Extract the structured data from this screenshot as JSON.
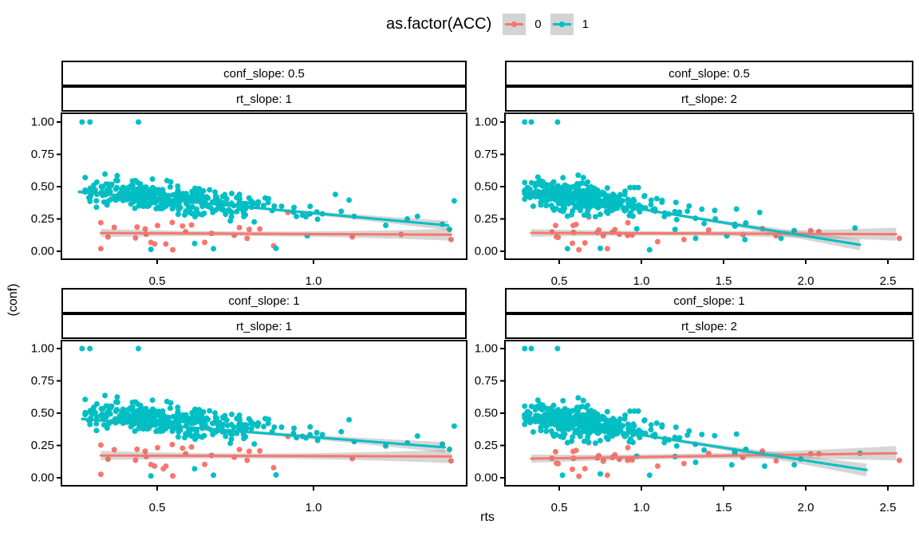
{
  "chart_data": {
    "type": "scatter",
    "title": "",
    "xlabel": "rts",
    "ylabel": "(conf)",
    "grid": "off",
    "legend": {
      "title": "as.factor(ACC)",
      "position": "top",
      "key_bg": "#D3D3D3",
      "entries": [
        {
          "label": "0",
          "color": "#F8766D"
        },
        {
          "label": "1",
          "color": "#00BFC4"
        }
      ]
    },
    "style": {
      "panel_border": "#000000",
      "strip_bg": "#FFFFFF",
      "strip_border": "#000000",
      "ci_color": "rgba(120,120,120,0.30)",
      "tick_color": "#000000",
      "text_color": "#000000"
    },
    "yticks": {
      "values": [
        0,
        0.25,
        0.5,
        0.75,
        1.0
      ],
      "labels": [
        "0.00",
        "0.25",
        "0.50",
        "0.75",
        "1.00"
      ]
    },
    "panels": [
      {
        "strip1": "conf_slope: 0.5",
        "strip2": "rt_slope: 1",
        "row": 0,
        "col": 0,
        "xlim": [
          0.194,
          1.49
        ],
        "ylim": [
          -0.065,
          1.065
        ],
        "xticks": {
          "values": [
            0.5,
            1.0
          ],
          "labels": [
            "0.5",
            "1.0"
          ]
        },
        "series": [
          {
            "name": "0",
            "color": "#F8766D",
            "n": 26,
            "seed_x": 107,
            "seed_y": 22,
            "x_mu": -0.45,
            "x_sigma": 0.38,
            "x_clip": [
              0.32,
              1.44
            ],
            "y_a": 0.155,
            "y_b": -0.013,
            "y_sd": 0.05,
            "y_clip": [
              0.02,
              0.3
            ],
            "extra": [
              [
                0.55,
                0.012
              ],
              [
                1.44,
                0.09
              ],
              [
                1.28,
                0.13
              ]
            ],
            "trend": [
              0.32,
              0.141,
              1.44,
              0.128
            ],
            "ci": {
              "xs": [
                0.32,
                0.8,
                1.44
              ],
              "hw": [
                0.032,
                0.018,
                0.046
              ]
            }
          },
          {
            "name": "1",
            "color": "#00BFC4",
            "n": 380,
            "seed_x": 7,
            "seed_y": 21,
            "x_mu": -0.62,
            "x_sigma": 0.3,
            "x_clip": [
              0.27,
              1.46
            ],
            "y_a": 0.52,
            "y_b": -0.205,
            "y_sd": 0.055,
            "y_clip": [
              0.0,
              1.0
            ],
            "extra": [
              [
                0.26,
                1.0
              ],
              [
                0.285,
                1.0
              ],
              [
                0.44,
                1.0
              ],
              [
                0.48,
                0.015
              ],
              [
                0.68,
                0.02
              ],
              [
                0.88,
                0.022
              ],
              [
                0.62,
                0.06
              ],
              [
                1.45,
                0.39
              ],
              [
                1.13,
                0.27
              ],
              [
                1.3,
                0.25
              ],
              [
                0.98,
                0.12
              ],
              [
                1.07,
                0.44
              ]
            ],
            "trend": [
              0.25,
              0.46,
              1.43,
              0.2
            ],
            "ci": {
              "xs": [
                0.25,
                0.6,
                1.43
              ],
              "hw": [
                0.016,
                0.01,
                0.036
              ]
            }
          }
        ]
      },
      {
        "strip1": "conf_slope: 0.5",
        "strip2": "rt_slope: 2",
        "row": 0,
        "col": 1,
        "xlim": [
          0.17,
          2.655
        ],
        "ylim": [
          -0.065,
          1.065
        ],
        "xticks": {
          "values": [
            0.5,
            1.0,
            1.5,
            2.0,
            2.5
          ],
          "labels": [
            "0.5",
            "1.0",
            "1.5",
            "2.0",
            "2.5"
          ]
        },
        "series": [
          {
            "name": "0",
            "color": "#F8766D",
            "n": 26,
            "seed_x": 113,
            "seed_y": 32,
            "x_mu": -0.2,
            "x_sigma": 0.5,
            "x_clip": [
              0.33,
              2.57
            ],
            "y_a": 0.148,
            "y_b": -0.004,
            "y_sd": 0.05,
            "y_clip": [
              0.02,
              0.28
            ],
            "extra": [
              [
                0.62,
                0.012
              ],
              [
                2.03,
                0.16
              ],
              [
                2.08,
                0.152
              ],
              [
                2.57,
                0.1
              ],
              [
                1.82,
                0.12
              ]
            ],
            "trend": [
              0.33,
              0.142,
              2.55,
              0.132
            ],
            "ci": {
              "xs": [
                0.33,
                1.1,
                2.55
              ],
              "hw": [
                0.03,
                0.018,
                0.05
              ]
            }
          },
          {
            "name": "1",
            "color": "#00BFC4",
            "n": 380,
            "seed_x": 13,
            "seed_y": 31,
            "x_mu": -0.5,
            "x_sigma": 0.37,
            "x_clip": [
              0.29,
              2.36
            ],
            "y_a": 0.525,
            "y_b": -0.175,
            "y_sd": 0.055,
            "y_clip": [
              0.0,
              1.0
            ],
            "extra": [
              [
                0.29,
                1.0
              ],
              [
                0.33,
                1.0
              ],
              [
                0.49,
                1.0
              ],
              [
                0.55,
                0.02
              ],
              [
                0.75,
                0.022
              ],
              [
                1.05,
                0.012
              ],
              [
                1.33,
                0.1
              ],
              [
                1.52,
                0.12
              ],
              [
                1.63,
                0.09
              ],
              [
                1.85,
                0.1
              ],
              [
                1.72,
                0.3
              ],
              [
                1.93,
                0.16
              ],
              [
                1.28,
                0.31
              ],
              [
                1.45,
                0.25
              ],
              [
                2.3,
                0.18
              ]
            ],
            "trend": [
              0.3,
              0.47,
              2.33,
              0.05
            ],
            "ci": {
              "xs": [
                0.3,
                0.7,
                2.33
              ],
              "hw": [
                0.015,
                0.01,
                0.044
              ]
            }
          }
        ]
      },
      {
        "strip1": "conf_slope: 1",
        "strip2": "rt_slope: 1",
        "row": 1,
        "col": 0,
        "xlim": [
          0.194,
          1.49
        ],
        "ylim": [
          -0.065,
          1.065
        ],
        "xticks": {
          "values": [
            0.5,
            1.0
          ],
          "labels": [
            "0.5",
            "1.0"
          ]
        },
        "series": [
          {
            "name": "0",
            "color": "#F8766D",
            "n": 26,
            "seed_x": 107,
            "seed_y": 22,
            "x_mu": -0.45,
            "x_sigma": 0.38,
            "x_clip": [
              0.32,
              1.44
            ],
            "y_a": 0.185,
            "y_b": -0.006,
            "y_sd": 0.05,
            "y_clip": [
              0.02,
              0.32
            ],
            "extra": [
              [
                0.55,
                0.015
              ],
              [
                1.44,
                0.13
              ],
              [
                0.52,
                0.07
              ]
            ],
            "trend": [
              0.32,
              0.172,
              1.44,
              0.165
            ],
            "ci": {
              "xs": [
                0.32,
                0.8,
                1.44
              ],
              "hw": [
                0.036,
                0.02,
                0.052
              ]
            }
          },
          {
            "name": "1",
            "color": "#00BFC4",
            "n": 380,
            "seed_x": 7,
            "seed_y": 21,
            "x_mu": -0.62,
            "x_sigma": 0.3,
            "x_clip": [
              0.27,
              1.46
            ],
            "y_a": 0.545,
            "y_b": -0.185,
            "y_sd": 0.058,
            "y_clip": [
              0.0,
              1.0
            ],
            "extra": [
              [
                0.26,
                1.0
              ],
              [
                0.285,
                1.0
              ],
              [
                0.44,
                1.0
              ],
              [
                0.48,
                0.015
              ],
              [
                0.68,
                0.02
              ],
              [
                0.88,
                0.022
              ],
              [
                1.45,
                0.4
              ],
              [
                1.13,
                0.28
              ],
              [
                1.3,
                0.27
              ],
              [
                0.62,
                0.07
              ]
            ],
            "trend": [
              0.26,
              0.455,
              1.42,
              0.235
            ],
            "ci": {
              "xs": [
                0.26,
                0.6,
                1.42
              ],
              "hw": [
                0.016,
                0.011,
                0.04
              ]
            }
          }
        ]
      },
      {
        "strip1": "conf_slope: 1",
        "strip2": "rt_slope: 2",
        "row": 1,
        "col": 1,
        "xlim": [
          0.17,
          2.655
        ],
        "ylim": [
          -0.065,
          1.065
        ],
        "xticks": {
          "values": [
            0.5,
            1.0,
            1.5,
            2.0,
            2.5
          ],
          "labels": [
            "0.5",
            "1.0",
            "1.5",
            "2.0",
            "2.5"
          ]
        },
        "series": [
          {
            "name": "0",
            "color": "#F8766D",
            "n": 26,
            "seed_x": 113,
            "seed_y": 32,
            "x_mu": -0.2,
            "x_sigma": 0.5,
            "x_clip": [
              0.33,
              2.57
            ],
            "y_a": 0.138,
            "y_b": 0.02,
            "y_sd": 0.05,
            "y_clip": [
              0.02,
              0.3
            ],
            "extra": [
              [
                0.62,
                0.012
              ],
              [
                2.03,
                0.185
              ],
              [
                2.08,
                0.185
              ],
              [
                2.57,
                0.135
              ],
              [
                1.82,
                0.13
              ]
            ],
            "trend": [
              0.33,
              0.148,
              2.55,
              0.19
            ],
            "ci": {
              "xs": [
                0.33,
                1.1,
                2.55
              ],
              "hw": [
                0.032,
                0.02,
                0.056
              ]
            }
          },
          {
            "name": "1",
            "color": "#00BFC4",
            "n": 380,
            "seed_x": 13,
            "seed_y": 31,
            "x_mu": -0.5,
            "x_sigma": 0.37,
            "x_clip": [
              0.29,
              2.36
            ],
            "y_a": 0.545,
            "y_b": -0.185,
            "y_sd": 0.06,
            "y_clip": [
              0.0,
              1.0
            ],
            "extra": [
              [
                0.29,
                1.0
              ],
              [
                0.33,
                1.0
              ],
              [
                0.49,
                1.0
              ],
              [
                0.52,
                0.02
              ],
              [
                0.75,
                0.03
              ],
              [
                1.05,
                0.02
              ],
              [
                1.33,
                0.12
              ],
              [
                1.55,
                0.1
              ],
              [
                1.75,
                0.09
              ],
              [
                1.93,
                0.1
              ],
              [
                1.97,
                0.145
              ],
              [
                2.33,
                0.19
              ],
              [
                1.28,
                0.33
              ]
            ],
            "trend": [
              0.3,
              0.47,
              2.37,
              0.06
            ],
            "ci": {
              "xs": [
                0.3,
                0.7,
                2.37
              ],
              "hw": [
                0.015,
                0.011,
                0.05
              ]
            }
          }
        ]
      }
    ]
  }
}
